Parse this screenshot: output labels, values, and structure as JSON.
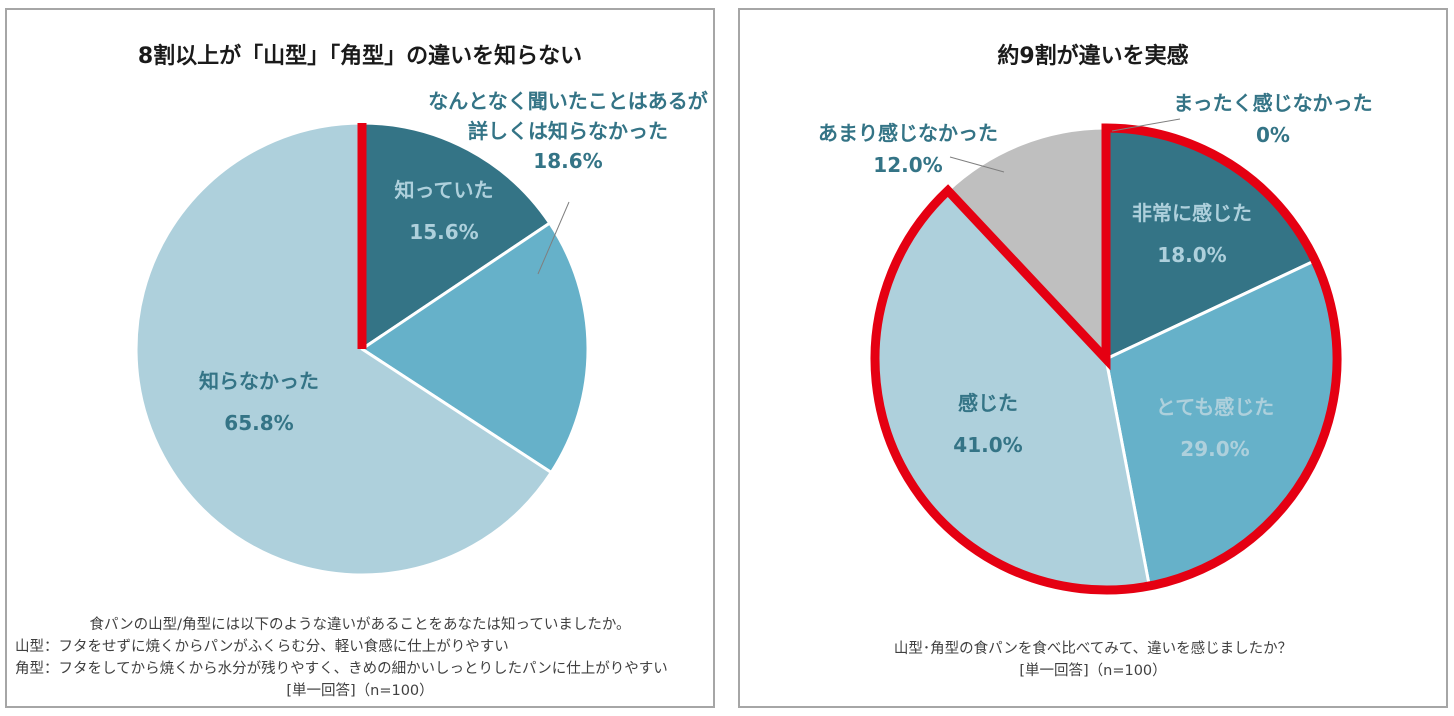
{
  "colors": {
    "dark": "#347486",
    "mid": "#66b1c9",
    "light": "#aed0dc",
    "gray": "#bfbfbf",
    "outline": "#e50012",
    "dark_text": "#404040",
    "light_text": "#ffffff"
  },
  "chart_data": [
    {
      "type": "pie",
      "title": "8割以上が「山型」「角型」の違いを知らない",
      "slices": [
        {
          "label": "知っていた",
          "value": 15.6,
          "display": "15.6%",
          "color": "dark",
          "text": "light",
          "highlight": true
        },
        {
          "label_lines": [
            "なんとなく聞いたことはあるが",
            "詳しくは知らなかった"
          ],
          "value": 18.6,
          "display": "18.6%",
          "color": "mid",
          "text": "dark",
          "callout": true,
          "highlight": false
        },
        {
          "label": "知らなかった",
          "value": 65.8,
          "display": "65.8%",
          "color": "light",
          "text": "dark",
          "highlight": true
        }
      ],
      "caption": [
        "食パンの山型/角型には以下のような違いがあることをあなたは知っていましたか。",
        "山型：フタをせずに焼くからパンがふくらむ分、軽い食感に仕上がりやすい",
        "角型：フタをしてから焼くから水分が残りやすく、きめの細かいしっとりしたパンに仕上がりやすい",
        "[単一回答]（n=100）"
      ]
    },
    {
      "type": "pie",
      "title": "約9割が違いを実感",
      "slices": [
        {
          "label": "非常に感じた",
          "value": 18.0,
          "display": "18.0%",
          "color": "dark",
          "text": "light",
          "highlight": true
        },
        {
          "label": "とても感じた",
          "value": 29.0,
          "display": "29.0%",
          "color": "mid",
          "text": "light",
          "highlight": true
        },
        {
          "label": "感じた",
          "value": 41.0,
          "display": "41.0%",
          "color": "light",
          "text": "dark",
          "highlight": true
        },
        {
          "label": "あまり感じなかった",
          "value": 12.0,
          "display": "12.0%",
          "color": "gray",
          "text": "dark",
          "callout": true,
          "highlight": false
        },
        {
          "label": "まったく感じなかった",
          "value": 0,
          "display": "0%",
          "color": "gray",
          "text": "dark",
          "callout": true,
          "highlight": false
        }
      ],
      "caption": [
        "山型･角型の食パンを食べ比べてみて、違いを感じましたか？",
        "[単一回答]（n=100）"
      ]
    }
  ]
}
